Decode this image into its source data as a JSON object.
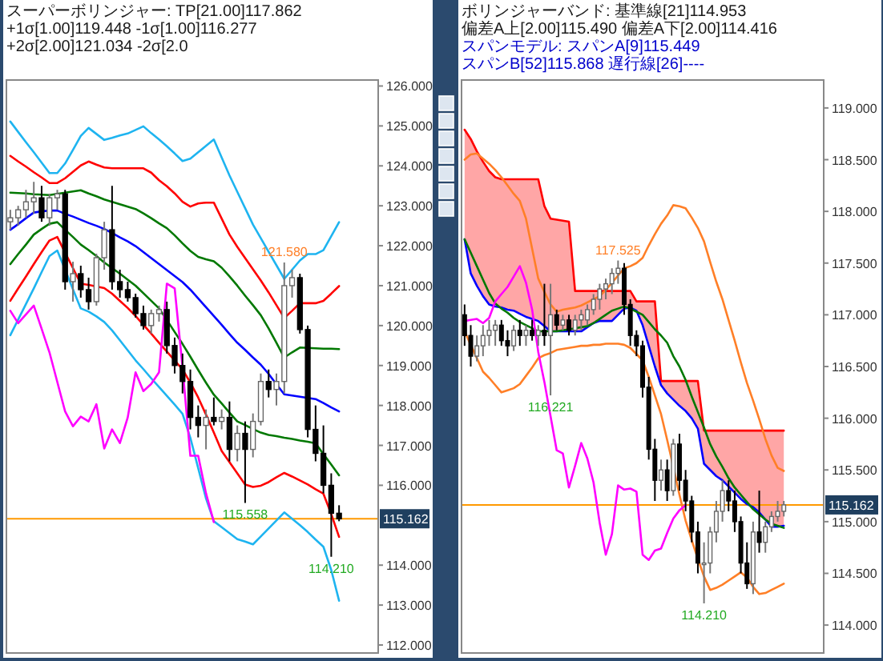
{
  "chart_data": [
    {
      "type": "candlestick",
      "title": "スーパーボリンジャー: TP[21.00]117.862 +1σ[1.00]119.448 -1σ[1.00]116.277 +2σ[2.00]121.034 -2σ[2.0",
      "tick_labels": "y",
      "ylim": [
        111.8,
        126.15
      ],
      "yticks": [
        {
          "value": 112,
          "label": "112.000"
        },
        {
          "value": 113,
          "label": "113.000"
        },
        {
          "value": 114,
          "label": "114.000"
        },
        {
          "value": 116,
          "label": "116.000"
        },
        {
          "value": 117,
          "label": "117.000"
        },
        {
          "value": 118,
          "label": "118.000"
        },
        {
          "value": 119,
          "label": "119.000"
        },
        {
          "value": 120,
          "label": "120.000"
        },
        {
          "value": 121,
          "label": "121.000"
        },
        {
          "value": 122,
          "label": "122.000"
        },
        {
          "value": 123,
          "label": "123.000"
        },
        {
          "value": 124,
          "label": "124.000"
        },
        {
          "value": 125,
          "label": "125.000"
        },
        {
          "value": 126,
          "label": "126.000"
        }
      ],
      "categories": [
        null,
        null,
        null,
        null,
        null,
        null,
        null,
        null,
        null,
        null,
        null,
        null,
        null,
        null,
        null,
        null,
        null,
        null,
        null,
        null,
        null,
        null,
        null,
        null,
        null,
        null,
        null,
        null,
        null,
        null,
        null,
        null,
        null,
        null,
        null,
        null,
        null,
        null,
        null,
        null,
        null,
        null,
        null
      ],
      "ohlc": [
        [
          122.6,
          122.9,
          122.4,
          122.7
        ],
        [
          122.7,
          123.0,
          122.5,
          122.9
        ],
        [
          122.9,
          123.4,
          122.7,
          123.1
        ],
        [
          123.1,
          123.6,
          122.8,
          123.2
        ],
        [
          123.2,
          123.5,
          122.6,
          122.7
        ],
        [
          122.7,
          123.3,
          122.5,
          123.2
        ],
        [
          123.2,
          123.4,
          122.9,
          123.3
        ],
        [
          123.3,
          123.4,
          120.9,
          121.1
        ],
        [
          121.1,
          121.6,
          120.6,
          121.3
        ],
        [
          121.3,
          121.5,
          120.7,
          120.9
        ],
        [
          120.9,
          121.2,
          120.4,
          120.6
        ],
        [
          120.6,
          121.8,
          120.5,
          121.7
        ],
        [
          121.7,
          122.6,
          121.4,
          122.4
        ],
        [
          122.4,
          123.5,
          120.9,
          121.1
        ],
        [
          121.1,
          121.4,
          120.7,
          120.9
        ],
        [
          120.9,
          121.1,
          120.6,
          120.7
        ],
        [
          120.7,
          120.8,
          120.2,
          120.3
        ],
        [
          120.3,
          120.5,
          119.9,
          120.0
        ],
        [
          120.0,
          120.4,
          119.8,
          120.3
        ],
        [
          120.3,
          120.5,
          120.1,
          120.4
        ],
        [
          120.4,
          120.6,
          119.3,
          119.5
        ],
        [
          119.5,
          119.7,
          118.8,
          119.0
        ],
        [
          119.0,
          119.3,
          118.3,
          118.6
        ],
        [
          118.6,
          118.9,
          117.4,
          117.7
        ],
        [
          117.7,
          118.0,
          117.2,
          117.5
        ],
        [
          117.5,
          117.9,
          116.9,
          117.7
        ],
        [
          117.7,
          118.2,
          117.5,
          117.6
        ],
        [
          117.6,
          117.9,
          117.4,
          117.7
        ],
        [
          117.7,
          118.1,
          116.6,
          116.9
        ],
        [
          116.9,
          117.5,
          116.6,
          117.3
        ],
        [
          117.3,
          117.6,
          115.558,
          116.9
        ],
        [
          116.9,
          117.8,
          116.7,
          117.6
        ],
        [
          117.6,
          118.8,
          117.5,
          118.6
        ],
        [
          118.6,
          118.9,
          118.2,
          118.4
        ],
        [
          118.4,
          118.8,
          118.0,
          118.6
        ],
        [
          118.6,
          121.58,
          118.3,
          121.0
        ],
        [
          121.0,
          121.4,
          120.7,
          121.2
        ],
        [
          121.2,
          121.3,
          119.8,
          119.9
        ],
        [
          119.9,
          120.0,
          117.2,
          117.4
        ],
        [
          117.4,
          118.0,
          116.6,
          116.8
        ],
        [
          116.8,
          117.5,
          115.8,
          116.0
        ],
        [
          116.0,
          116.3,
          114.21,
          115.3
        ],
        [
          115.3,
          115.5,
          115.1,
          115.162
        ]
      ],
      "series": [
        {
          "type": "line",
          "color": "#1eb4f0",
          "values": [
            125.11,
            124.85,
            124.59,
            124.34,
            124.08,
            123.82,
            123.82,
            124.06,
            124.4,
            124.75,
            124.95,
            124.8,
            124.65,
            124.7,
            124.76,
            124.81,
            124.9,
            124.99,
            124.82,
            124.66,
            124.49,
            124.31,
            124.12,
            124.18,
            124.34,
            124.5,
            124.66,
            124.21,
            123.76,
            123.35,
            122.94,
            122.53,
            122.19,
            121.85,
            121.51,
            121.17,
            121.4,
            121.63,
            121.79,
            121.79,
            121.89,
            122.24,
            122.59
          ]
        },
        {
          "type": "line",
          "color": "#ff0000",
          "values": [
            124.25,
            124.11,
            123.98,
            123.84,
            123.71,
            123.57,
            123.57,
            123.69,
            123.85,
            124.01,
            124.11,
            124.03,
            123.96,
            123.94,
            123.94,
            123.94,
            123.94,
            123.94,
            123.83,
            123.64,
            123.49,
            123.31,
            123.1,
            122.98,
            123.06,
            123.08,
            123.08,
            122.68,
            122.28,
            121.97,
            121.69,
            121.41,
            121.13,
            120.83,
            120.51,
            120.19,
            120.37,
            120.56,
            120.56,
            120.56,
            120.62,
            120.8,
            120.99
          ]
        },
        {
          "type": "line",
          "color": "#007800",
          "values": [
            123.33,
            123.32,
            123.31,
            123.29,
            123.28,
            123.27,
            123.3,
            123.33,
            123.36,
            123.39,
            123.31,
            123.24,
            123.16,
            123.1,
            123.04,
            122.98,
            122.92,
            122.81,
            122.69,
            122.56,
            122.44,
            122.26,
            122.06,
            121.87,
            121.72,
            121.66,
            121.61,
            121.45,
            121.23,
            121.0,
            120.75,
            120.51,
            120.26,
            119.93,
            119.57,
            119.2,
            119.33,
            119.45,
            119.44,
            119.43,
            119.42,
            119.42,
            119.41
          ]
        },
        {
          "type": "line",
          "color": "#0000ff",
          "values": [
            122.4,
            122.54,
            122.69,
            122.83,
            122.86,
            122.88,
            122.88,
            122.8,
            122.73,
            122.65,
            122.57,
            122.5,
            122.42,
            122.32,
            122.21,
            122.11,
            121.99,
            121.84,
            121.69,
            121.54,
            121.39,
            121.24,
            121.09,
            120.9,
            120.68,
            120.46,
            120.24,
            120.02,
            119.79,
            119.57,
            119.39,
            119.2,
            119.02,
            118.79,
            118.53,
            118.28,
            118.25,
            118.22,
            118.19,
            118.16,
            118.06,
            117.95,
            117.85
          ]
        },
        {
          "type": "line",
          "color": "#007800",
          "values": [
            121.54,
            121.79,
            122.03,
            122.28,
            122.42,
            122.55,
            122.59,
            122.4,
            122.22,
            122.03,
            121.89,
            121.74,
            121.58,
            121.44,
            121.3,
            121.15,
            121.0,
            120.81,
            120.62,
            120.43,
            120.14,
            119.84,
            119.54,
            119.22,
            118.89,
            118.57,
            118.27,
            118.05,
            117.82,
            117.6,
            117.51,
            117.41,
            117.32,
            117.26,
            117.23,
            117.19,
            117.16,
            117.12,
            117.09,
            117.05,
            116.78,
            116.52,
            116.25
          ]
        },
        {
          "type": "line",
          "color": "#ff0000",
          "values": [
            120.62,
            120.93,
            121.23,
            121.54,
            121.84,
            122.13,
            122.22,
            121.83,
            121.44,
            121.05,
            121.02,
            120.98,
            120.94,
            120.8,
            120.62,
            120.44,
            120.24,
            120.02,
            119.8,
            119.57,
            119.35,
            119.13,
            118.9,
            118.57,
            118.2,
            117.77,
            117.32,
            116.86,
            116.58,
            116.3,
            116.02,
            115.96,
            115.99,
            116.08,
            116.2,
            116.31,
            116.22,
            116.12,
            116.02,
            115.9,
            115.79,
            115.28,
            114.71
          ]
        },
        {
          "type": "line",
          "color": "#1eb4f0",
          "values": [
            119.76,
            120.15,
            120.54,
            120.93,
            121.34,
            121.74,
            121.88,
            121.4,
            120.91,
            120.43,
            120.35,
            120.23,
            120.09,
            119.88,
            119.63,
            119.38,
            119.13,
            118.91,
            118.68,
            118.46,
            118.24,
            118.02,
            117.79,
            117.19,
            116.43,
            115.67,
            115.1,
            114.95,
            114.8,
            114.65,
            114.59,
            114.52,
            114.72,
            114.92,
            115.12,
            115.32,
            115.16,
            115.0,
            114.83,
            114.64,
            114.46,
            113.88,
            113.11
          ]
        },
        {
          "type": "line",
          "color": "#ff00ff",
          "values": [
            120.37,
            120.06,
            120.28,
            120.5,
            119.92,
            119.33,
            118.59,
            117.85,
            117.48,
            117.72,
            117.6,
            118.03,
            116.92,
            117.4,
            117.06,
            117.7,
            118.83,
            118.36,
            118.54,
            118.83,
            121.05,
            120.93,
            118.96,
            116.74,
            116.74,
            115.8,
            115.08,
            null,
            null,
            null,
            null,
            null,
            null,
            null,
            null,
            null,
            null,
            null,
            null,
            null,
            null,
            null,
            null
          ]
        }
      ],
      "ref_lines": [
        {
          "axis": "y",
          "value": 115.162,
          "label": "115.162",
          "color": "#ff9900"
        }
      ],
      "annotations": [
        {
          "text": "121.580",
          "y": 121.58
        },
        {
          "text": "115.558",
          "y": 115.558
        },
        {
          "text": "114.210",
          "y": 114.21
        }
      ]
    },
    {
      "type": "candlestick",
      "title": "ボリンジャーバンド: 基準線[21]114.953 偏差A上[2.00]115.490 偏差A下[2.00]114.416",
      "subtitle": "スパンモデル: スパンA[9]115.449 スパンB[52]115.868 遅行線[26]----",
      "tick_labels": "y",
      "ylim": [
        113.73,
        119.27
      ],
      "yticks": [
        {
          "value": 114,
          "label": "114.000"
        },
        {
          "value": 114.5,
          "label": "114.500"
        },
        {
          "value": 115,
          "label": "115.000"
        },
        {
          "value": 115.5,
          "label": "115.500"
        },
        {
          "value": 116,
          "label": "116.000"
        },
        {
          "value": 116.5,
          "label": "116.500"
        },
        {
          "value": 117,
          "label": "117.000"
        },
        {
          "value": 117.5,
          "label": "117.500"
        },
        {
          "value": 118,
          "label": "118.000"
        },
        {
          "value": 118.5,
          "label": "118.500"
        },
        {
          "value": 119,
          "label": "119.000"
        }
      ],
      "categories": [
        null,
        null,
        null,
        null,
        null,
        null,
        null,
        null,
        null,
        null,
        null,
        null,
        null,
        null,
        null,
        null,
        null,
        null,
        null,
        null,
        null,
        null,
        null,
        null,
        null,
        null,
        null,
        null,
        null,
        null,
        null,
        null,
        null,
        null,
        null,
        null,
        null,
        null,
        null,
        null,
        null,
        null,
        null,
        null,
        null,
        null,
        null,
        null,
        null,
        null,
        null,
        null,
        null
      ],
      "ohlc": [
        [
          117.0,
          117.1,
          116.7,
          116.8
        ],
        [
          116.8,
          116.9,
          116.5,
          116.6
        ],
        [
          116.6,
          116.8,
          116.55,
          116.7
        ],
        [
          116.7,
          116.9,
          116.6,
          116.8
        ],
        [
          116.8,
          116.95,
          116.7,
          116.85
        ],
        [
          116.85,
          116.95,
          116.7,
          116.9
        ],
        [
          116.9,
          116.95,
          116.7,
          116.75
        ],
        [
          116.75,
          116.85,
          116.6,
          116.7
        ],
        [
          116.7,
          116.9,
          116.65,
          116.85
        ],
        [
          116.85,
          116.95,
          116.7,
          116.8
        ],
        [
          116.8,
          116.9,
          116.7,
          116.85
        ],
        [
          116.85,
          116.95,
          116.75,
          116.8
        ],
        [
          116.8,
          116.9,
          116.7,
          116.85
        ],
        [
          116.85,
          117.3,
          116.7,
          116.8
        ],
        [
          116.8,
          117.3,
          116.221,
          117.0
        ],
        [
          117.0,
          117.05,
          116.85,
          116.9
        ],
        [
          116.9,
          117.0,
          116.85,
          116.95
        ],
        [
          116.95,
          117.0,
          116.8,
          116.85
        ],
        [
          116.85,
          117.0,
          116.8,
          116.95
        ],
        [
          116.95,
          117.05,
          116.85,
          117.0
        ],
        [
          116.95,
          117.1,
          116.9,
          117.05
        ],
        [
          117.05,
          117.2,
          117.0,
          117.15
        ],
        [
          117.15,
          117.3,
          117.05,
          117.25
        ],
        [
          117.25,
          117.35,
          117.15,
          117.3
        ],
        [
          117.3,
          117.45,
          117.2,
          117.4
        ],
        [
          117.4,
          117.525,
          117.3,
          117.45
        ],
        [
          117.45,
          117.5,
          117.0,
          117.1
        ],
        [
          117.1,
          117.15,
          116.7,
          116.8
        ],
        [
          116.8,
          116.85,
          116.6,
          116.7
        ],
        [
          116.7,
          116.75,
          116.2,
          116.3
        ],
        [
          116.3,
          116.4,
          115.6,
          115.7
        ],
        [
          115.7,
          115.8,
          115.2,
          115.4
        ],
        [
          115.4,
          115.6,
          115.3,
          115.5
        ],
        [
          115.5,
          115.6,
          115.2,
          115.3
        ],
        [
          115.3,
          115.8,
          115.25,
          115.75
        ],
        [
          115.75,
          115.85,
          115.3,
          115.4
        ],
        [
          115.4,
          115.5,
          115.1,
          115.2
        ],
        [
          115.2,
          115.25,
          114.8,
          114.9
        ],
        [
          114.9,
          115.0,
          114.5,
          114.6
        ],
        [
          114.6,
          114.8,
          114.21,
          114.6
        ],
        [
          114.6,
          114.95,
          114.5,
          114.9
        ],
        [
          114.9,
          115.2,
          114.8,
          115.1
        ],
        [
          115.1,
          115.4,
          115.0,
          115.3
        ],
        [
          115.3,
          115.4,
          115.1,
          115.2
        ],
        [
          115.2,
          115.3,
          114.9,
          115.0
        ],
        [
          115.0,
          115.05,
          114.5,
          114.6
        ],
        [
          114.6,
          114.8,
          114.35,
          114.4
        ],
        [
          114.4,
          115.0,
          114.3,
          114.9
        ],
        [
          114.9,
          115.3,
          114.7,
          114.8
        ],
        [
          114.8,
          115.0,
          114.7,
          114.95
        ],
        [
          114.95,
          115.1,
          114.9,
          115.05
        ],
        [
          115.05,
          115.2,
          115.0,
          115.1
        ],
        [
          115.1,
          115.2,
          115.05,
          115.162
        ]
      ],
      "series": [
        {
          "type": "line",
          "color": "#ff0000",
          "values": [
            118.79,
            118.7,
            118.58,
            118.48,
            118.39,
            118.33,
            118.31,
            118.31,
            118.31,
            118.31,
            118.31,
            118.31,
            118.31,
            118.05,
            117.93,
            117.92,
            117.91,
            117.9,
            117.23,
            117.23,
            117.23,
            117.23,
            117.23,
            117.23,
            117.23,
            117.23,
            117.23,
            117.23,
            117.13,
            117.13,
            117.13,
            117.13,
            116.36,
            116.36,
            116.36,
            116.36,
            116.36,
            116.36,
            116.36,
            115.88,
            115.88,
            115.88,
            115.88,
            115.88,
            115.88,
            115.88,
            115.88,
            115.88,
            115.88,
            115.88,
            115.88,
            115.88,
            115.88
          ],
          "lower": [
            117.73,
            117.4,
            117.28,
            117.18,
            117.1,
            117.08,
            117.07,
            117.05,
            117.04,
            117.01,
            116.98,
            116.96,
            116.94,
            116.89,
            116.84,
            116.84,
            116.84,
            116.84,
            116.84,
            116.84,
            116.88,
            116.92,
            116.94,
            116.94,
            116.94,
            117.0,
            117.06,
            117.07,
            117.04,
            116.9,
            116.7,
            116.5,
            116.32,
            116.24,
            116.18,
            116.12,
            116.07,
            116.0,
            115.9,
            115.56,
            115.5,
            115.44,
            115.4,
            115.34,
            115.28,
            115.22,
            115.17,
            115.14,
            115.09,
            115.02,
            114.95,
            114.95,
            114.96
          ],
          "upper": [
            118.79,
            118.7,
            118.58,
            118.48,
            118.39,
            118.33,
            118.31,
            118.31,
            118.31,
            118.31,
            118.31,
            118.31,
            118.31,
            118.05,
            117.93,
            117.92,
            117.91,
            117.9,
            117.23,
            117.23,
            117.23,
            117.23,
            117.23,
            117.23,
            117.23,
            117.23,
            117.23,
            117.23,
            117.13,
            117.13,
            117.13,
            117.13,
            116.36,
            116.36,
            116.36,
            116.36,
            116.36,
            116.36,
            116.36,
            115.88,
            115.88,
            115.88,
            115.88,
            115.88,
            115.88,
            115.88,
            115.88,
            115.88,
            115.88,
            115.88,
            115.88,
            115.88,
            115.88
          ]
        },
        {
          "type": "line",
          "color": "#0000ff",
          "values": [
            117.73,
            117.4,
            117.28,
            117.18,
            117.1,
            117.08,
            117.07,
            117.05,
            117.04,
            117.01,
            116.98,
            116.96,
            116.94,
            116.89,
            116.84,
            116.84,
            116.84,
            116.84,
            116.84,
            116.84,
            116.88,
            116.92,
            116.94,
            116.94,
            116.94,
            117.0,
            117.06,
            117.07,
            117.04,
            116.9,
            116.7,
            116.5,
            116.32,
            116.24,
            116.18,
            116.12,
            116.07,
            116.0,
            115.9,
            115.56,
            115.5,
            115.44,
            115.4,
            115.34,
            115.28,
            115.22,
            115.17,
            115.14,
            115.09,
            115.02,
            114.95,
            114.95,
            114.96
          ]
        },
        {
          "type": "line",
          "color": "#007800",
          "values": [
            117.73,
            117.6,
            117.47,
            117.34,
            117.21,
            117.11,
            117.06,
            117.02,
            116.97,
            116.93,
            116.9,
            116.87,
            116.84,
            116.84,
            116.84,
            116.84,
            116.85,
            116.86,
            116.87,
            116.88,
            116.89,
            116.92,
            116.96,
            117.0,
            117.04,
            117.06,
            117.08,
            117.06,
            117.03,
            117.0,
            116.93,
            116.86,
            116.8,
            116.73,
            116.6,
            116.5,
            116.37,
            116.21,
            116.06,
            115.91,
            115.75,
            115.63,
            115.53,
            115.42,
            115.33,
            115.26,
            115.19,
            115.12,
            115.07,
            115.02,
            114.98,
            114.96,
            114.94
          ]
        },
        {
          "type": "line",
          "color": "#ff7f27",
          "values": [
            118.5,
            118.55,
            118.56,
            118.51,
            118.46,
            118.4,
            118.33,
            118.25,
            118.17,
            118.1,
            117.93,
            117.64,
            117.35,
            117.22,
            117.1,
            117.03,
            117.05,
            117.06,
            117.07,
            117.09,
            117.12,
            117.15,
            117.18,
            117.24,
            117.31,
            117.38,
            117.45,
            117.47,
            117.5,
            117.55,
            117.67,
            117.78,
            117.88,
            117.96,
            118.06,
            118.05,
            118.03,
            117.94,
            117.84,
            117.71,
            117.51,
            117.32,
            117.15,
            116.95,
            116.75,
            116.54,
            116.34,
            116.17,
            115.99,
            115.8,
            115.64,
            115.52,
            115.49
          ]
        },
        {
          "type": "line",
          "color": "#ff7f27",
          "values": [
            116.84,
            116.71,
            116.58,
            116.45,
            116.39,
            116.32,
            116.25,
            116.27,
            116.29,
            116.33,
            116.41,
            116.49,
            116.58,
            116.61,
            116.63,
            116.66,
            116.67,
            116.68,
            116.69,
            116.7,
            116.7,
            116.71,
            116.71,
            116.72,
            116.72,
            116.72,
            116.71,
            116.68,
            116.62,
            116.56,
            116.4,
            116.22,
            116.04,
            115.79,
            115.53,
            115.26,
            115.01,
            114.82,
            114.64,
            114.47,
            114.34,
            114.36,
            114.39,
            114.43,
            114.47,
            114.51,
            114.46,
            114.37,
            114.3,
            114.31,
            114.34,
            114.37,
            114.4
          ]
        },
        {
          "type": "line",
          "color": "#ff00ff",
          "values": [
            116.94,
            116.95,
            116.96,
            116.92,
            116.97,
            117.13,
            117.2,
            117.27,
            117.37,
            117.47,
            117.31,
            117.05,
            116.64,
            116.35,
            116.02,
            115.69,
            115.66,
            115.33,
            115.54,
            115.76,
            115.61,
            115.38,
            114.99,
            114.68,
            114.88,
            115.35,
            115.31,
            115.32,
            115.29,
            114.68,
            114.63,
            114.72,
            114.74,
            114.89,
            115.03,
            115.11,
            115.16,
            null,
            null,
            null,
            null,
            null,
            null,
            null,
            null,
            null,
            null,
            null,
            null,
            null,
            null,
            null,
            null
          ]
        }
      ],
      "ref_lines": [
        {
          "axis": "y",
          "value": 115.162,
          "label": "115.162",
          "color": "#ff9900"
        }
      ],
      "annotations": [
        {
          "text": "117.525",
          "y": 117.525
        },
        {
          "text": "116.221",
          "y": 116.221
        },
        {
          "text": "114.210",
          "y": 114.21
        }
      ]
    }
  ]
}
